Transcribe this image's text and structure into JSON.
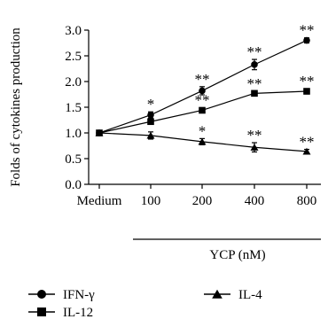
{
  "chart_data": {
    "type": "line",
    "ylabel": "Folds of cytokines production",
    "xlabel": "YCP (nM)",
    "categories": [
      "Medium",
      "100",
      "200",
      "400",
      "800"
    ],
    "ylim": [
      0.0,
      3.0
    ],
    "yticks": [
      "0.0",
      "0.5",
      "1.0",
      "1.5",
      "2.0",
      "2.5",
      "3.0"
    ],
    "grid": false,
    "legend_position": "bottom",
    "series": [
      {
        "name": "IFN-γ",
        "marker": "circle",
        "values": [
          1.0,
          1.35,
          1.82,
          2.33,
          2.8
        ],
        "errors": [
          0.05,
          0.06,
          0.08,
          0.1,
          0.05
        ],
        "annotations": [
          "",
          "*",
          "**",
          "**",
          "**"
        ]
      },
      {
        "name": "IL-12",
        "marker": "square",
        "values": [
          1.0,
          1.22,
          1.44,
          1.77,
          1.81
        ],
        "errors": [
          0.05,
          0.05,
          0.05,
          0.04,
          0.05
        ],
        "annotations": [
          "",
          "",
          "**",
          "**",
          "**"
        ]
      },
      {
        "name": "IL-4",
        "marker": "triangle",
        "values": [
          1.0,
          0.95,
          0.83,
          0.72,
          0.64
        ],
        "errors": [
          0.05,
          0.07,
          0.06,
          0.09,
          0.04
        ],
        "annotations": [
          "",
          "",
          "*",
          "**",
          "**"
        ]
      }
    ]
  }
}
